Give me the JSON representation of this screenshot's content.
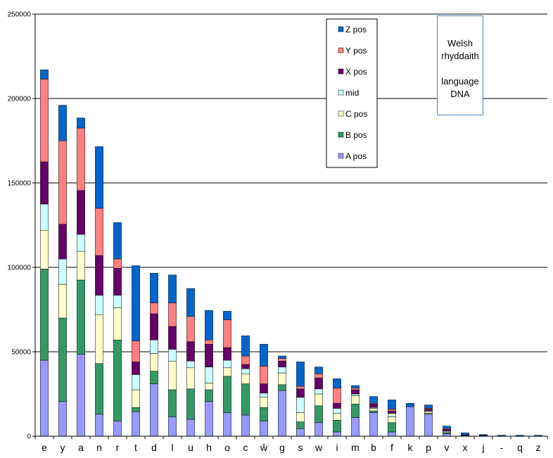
{
  "chart_data": {
    "type": "bar",
    "stacked": true,
    "categories": [
      "e",
      "y",
      "a",
      "n",
      "r",
      "t",
      "d",
      "l",
      "u",
      "h",
      "o",
      "c",
      "ŵ",
      "g",
      "s",
      "w",
      "i",
      "m",
      "b",
      "f",
      "k",
      "p",
      "v",
      "x",
      "j",
      "-",
      "q",
      "z"
    ],
    "ylim": [
      0,
      250000
    ],
    "yticks": [
      0,
      50000,
      100000,
      150000,
      200000,
      250000
    ],
    "grid": true,
    "legend_position": "top-center",
    "series": [
      {
        "name": "A pos",
        "color": "#9999ff",
        "values": [
          45000,
          20500,
          48500,
          13000,
          9000,
          14500,
          31000,
          11500,
          10000,
          20500,
          14000,
          12500,
          9000,
          27000,
          4500,
          8000,
          2500,
          11000,
          14000,
          2500,
          17500,
          13000,
          1500,
          200,
          150,
          50,
          50,
          50
        ]
      },
      {
        "name": "B pos",
        "color": "#339966",
        "values": [
          54000,
          49500,
          44000,
          30000,
          48000,
          2500,
          7500,
          16000,
          18000,
          7000,
          21500,
          18500,
          8000,
          3500,
          4000,
          10000,
          7000,
          8000,
          1000,
          5500,
          0,
          500,
          500,
          100,
          100,
          0,
          0,
          0
        ]
      },
      {
        "name": "C pos",
        "color": "#ffffcc",
        "values": [
          23000,
          20000,
          17000,
          29000,
          19000,
          10500,
          10500,
          17000,
          12500,
          4000,
          5000,
          6000,
          6000,
          7000,
          5500,
          7000,
          4000,
          5000,
          1500,
          3500,
          0,
          1000,
          500,
          100,
          50,
          0,
          0,
          0
        ]
      },
      {
        "name": "mid",
        "color": "#ccffff",
        "values": [
          15500,
          15000,
          10000,
          11500,
          7500,
          9000,
          8000,
          7000,
          4000,
          9500,
          4500,
          3000,
          2500,
          3500,
          9000,
          3000,
          3000,
          1000,
          500,
          2000,
          0,
          500,
          500,
          100,
          50,
          0,
          0,
          0
        ]
      },
      {
        "name": "X pos",
        "color": "#660066",
        "values": [
          25000,
          20500,
          26000,
          23500,
          16000,
          7500,
          15500,
          13500,
          11500,
          13500,
          7500,
          2500,
          5500,
          3500,
          5000,
          6500,
          3000,
          2500,
          2000,
          1500,
          0,
          1000,
          1000,
          100,
          100,
          0,
          0,
          0
        ]
      },
      {
        "name": "Y pos",
        "color": "#ff8080",
        "values": [
          49000,
          49500,
          37000,
          28000,
          5500,
          12500,
          6500,
          14000,
          15000,
          2500,
          16500,
          5000,
          10500,
          1500,
          1500,
          2500,
          9000,
          1000,
          500,
          1000,
          0,
          500,
          500,
          100,
          50,
          0,
          0,
          0
        ]
      },
      {
        "name": "Z pos",
        "color": "#0066cc",
        "values": [
          5500,
          21000,
          6000,
          36500,
          21500,
          44500,
          17500,
          16500,
          16500,
          17500,
          5000,
          12000,
          13000,
          1500,
          14500,
          4000,
          5500,
          1500,
          4000,
          5500,
          2000,
          2000,
          1500,
          1300,
          500,
          550,
          550,
          500
        ]
      }
    ]
  },
  "note": {
    "line1": "Welsh",
    "line2": "rhyddaith",
    "line3": "language",
    "line4": "DNA"
  }
}
